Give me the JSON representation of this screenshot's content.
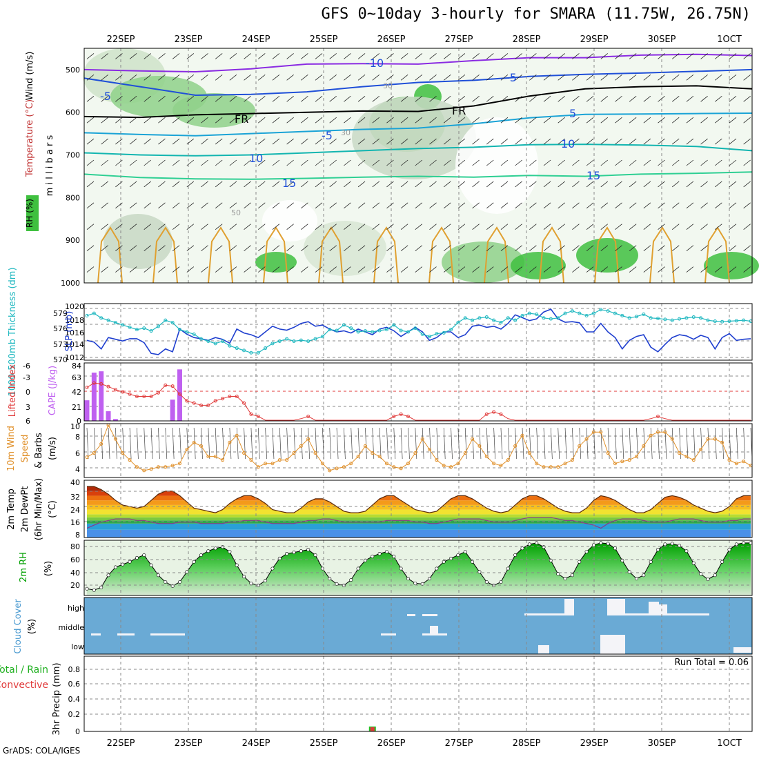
{
  "title": "GFS 0~10day 3-hourly for SMARA (11.75W, 26.75N)",
  "credit": "GrADS: COLA/IGES",
  "dates": [
    "22SEP",
    "23SEP",
    "24SEP",
    "25SEP",
    "26SEP",
    "27SEP",
    "28SEP",
    "29SEP",
    "30SEP",
    "1OCT"
  ],
  "chart_data": [
    {
      "type": "contour",
      "id": "upper-air",
      "ylabel": "m i l l i b a r s",
      "side_labels": [
        "Wind (m/s)",
        "Temperature (°C)",
        "RH (%)"
      ],
      "y_ticks": [
        "500",
        "600",
        "700",
        "800",
        "900",
        "1000"
      ],
      "ylim": [
        1000,
        450
      ],
      "contour_labels": [
        "-10",
        "-5",
        "-5",
        "FR",
        "FR",
        "-5",
        "5",
        "10",
        "10",
        "15",
        "15",
        "30",
        "30",
        "50"
      ],
      "isotherms": [
        {
          "label": "-10",
          "color": "#8a2be2",
          "p": [
            500,
            503,
            505,
            498,
            487,
            486,
            487,
            479,
            472,
            472,
            466,
            464,
            467
          ]
        },
        {
          "label": "-5",
          "color": "#1f4fd8",
          "p": [
            520,
            540,
            560,
            558,
            552,
            540,
            530,
            525,
            516,
            511,
            508,
            504,
            500
          ]
        },
        {
          "label": "FR",
          "color": "#000000",
          "p": [
            610,
            612,
            606,
            603,
            600,
            597,
            598,
            585,
            562,
            545,
            540,
            538,
            545
          ]
        },
        {
          "label": "5",
          "color": "#1aa3d6",
          "p": [
            648,
            652,
            655,
            650,
            645,
            640,
            637,
            627,
            613,
            605,
            604,
            603,
            602
          ]
        },
        {
          "label": "10",
          "color": "#12b5b0",
          "p": [
            695,
            700,
            702,
            700,
            695,
            690,
            685,
            682,
            676,
            675,
            677,
            680,
            690
          ]
        },
        {
          "label": "15",
          "color": "#2ecf93",
          "p": [
            745,
            753,
            756,
            757,
            755,
            752,
            750,
            752,
            748,
            750,
            745,
            743,
            740
          ]
        }
      ]
    },
    {
      "type": "line",
      "id": "slp-thickness",
      "ylabel_left": "1000-500mb Thickness (dm)",
      "ylabel_right": "SLP (mb)",
      "left_ticks": [
        "579",
        "576",
        "573",
        "570"
      ],
      "right_ticks": [
        "1020",
        "1018",
        "1016",
        "1014",
        "1012"
      ],
      "series": [
        {
          "name": "SLP (mb)",
          "color": "#1f3fcf",
          "ylim": [
            1011.5,
            1020.5
          ],
          "values": [
            1014.5,
            1014.2,
            1013.0,
            1015.0,
            1014.7,
            1014.4,
            1014.8,
            1014.8,
            1014.1,
            1012.2,
            1012.0,
            1013.0,
            1012.5,
            1016.5,
            1015.6,
            1015.0,
            1014.8,
            1014.5,
            1015.0,
            1014.7,
            1014.0,
            1016.5,
            1015.8,
            1015.5,
            1015.0,
            1016.0,
            1017.0,
            1016.5,
            1016.3,
            1016.8,
            1017.5,
            1017.8,
            1017.0,
            1017.2,
            1016.5,
            1016.0,
            1016.2,
            1015.8,
            1016.5,
            1016.0,
            1015.5,
            1016.5,
            1016.8,
            1016.2,
            1015.2,
            1016.0,
            1016.8,
            1016.0,
            1014.5,
            1015.0,
            1016.0,
            1016.0,
            1015.0,
            1015.5,
            1017.0,
            1017.2,
            1016.8,
            1017.0,
            1016.5,
            1017.5,
            1019.0,
            1018.5,
            1018.0,
            1018.3,
            1019.5,
            1020.0,
            1018.3,
            1017.7,
            1017.8,
            1017.6,
            1016.0,
            1016.0,
            1017.5,
            1016.0,
            1015.0,
            1013.0,
            1014.5,
            1015.2,
            1015.5,
            1013.3,
            1012.5,
            1013.8,
            1015.0,
            1015.5,
            1015.3,
            1014.7,
            1015.4,
            1015.0,
            1013.0,
            1015.0,
            1015.7,
            1014.5,
            1014.7,
            1014.8
          ]
        },
        {
          "name": "Thickness (dm)",
          "color": "#20b8c0",
          "ylim": [
            569.5,
            580.5
          ],
          "values": [
            578.5,
            579.0,
            578.0,
            577.5,
            577.0,
            576.5,
            576.0,
            575.5,
            575.8,
            575.2,
            576.2,
            577.5,
            577.0,
            575.5,
            575.0,
            574.5,
            573.5,
            573.0,
            572.5,
            573.0,
            572.0,
            571.5,
            571.0,
            570.5,
            570.5,
            571.5,
            572.5,
            573.0,
            573.5,
            573.0,
            573.2,
            573.0,
            573.5,
            574.0,
            575.5,
            575.3,
            576.5,
            575.8,
            575.0,
            575.2,
            575.0,
            575.3,
            575.5,
            576.5,
            575.3,
            575.0,
            575.8,
            574.5,
            574.0,
            574.6,
            574.8,
            575.5,
            577.0,
            578.0,
            577.5,
            578.0,
            578.2,
            577.5,
            577.0,
            578.0,
            577.5,
            578.5,
            579.0,
            578.8,
            578.0,
            577.8,
            578.0,
            579.0,
            579.5,
            579.0,
            578.5,
            579.0,
            579.8,
            579.5,
            579.0,
            578.5,
            578.0,
            578.3,
            578.8,
            578.0,
            577.9,
            577.7,
            577.5,
            577.8,
            578.0,
            578.2,
            578.0,
            577.5,
            577.3,
            577.2,
            577.3,
            577.4,
            577.5,
            577.3
          ]
        }
      ]
    },
    {
      "type": "bar+line",
      "id": "cape-li",
      "ylabel_left": "Lifted Index",
      "ylabel_right": "CAPE (J/kg)",
      "left_ticks": [
        "-6",
        "-3",
        "0",
        "3",
        "6"
      ],
      "right_ticks": [
        "84",
        "63",
        "42",
        "21",
        "0"
      ],
      "cape": {
        "color": "#bf60f0",
        "ylim": [
          0,
          90
        ],
        "values": [
          32,
          75,
          77,
          15,
          3,
          0,
          0,
          0,
          0,
          0,
          0,
          0,
          33,
          80,
          0,
          0,
          0,
          0,
          0,
          0,
          0,
          0,
          0,
          0,
          0,
          0,
          0,
          0,
          0,
          0,
          0,
          0,
          0,
          0,
          0,
          0,
          0,
          0,
          0,
          0,
          0,
          0,
          0,
          0,
          0,
          0,
          0,
          0,
          0,
          0,
          0,
          0,
          0,
          0,
          0,
          0,
          0,
          0,
          0,
          0,
          0,
          0,
          0,
          0,
          0,
          0,
          0,
          0,
          0,
          0,
          0,
          0,
          0,
          0,
          0,
          0,
          0,
          0,
          0,
          0,
          0,
          0,
          0,
          0,
          0,
          0,
          0,
          0,
          0,
          0,
          0,
          0,
          0,
          0
        ]
      },
      "li": {
        "color": "#e03a3a",
        "ylim": [
          -6.5,
          6.5
        ],
        "values": [
          -1.0,
          -2.0,
          -1.8,
          -1.2,
          -0.5,
          0,
          0.5,
          1,
          1,
          1,
          0.2,
          -1.5,
          -1.3,
          0.5,
          2.0,
          2.5,
          3.0,
          3.0,
          2.0,
          1.5,
          1.0,
          1.0,
          2.5,
          5.0,
          5.5,
          6.5,
          6.5,
          6.5,
          6.5,
          6.5,
          6.0,
          5.5,
          6.5,
          6.5,
          6.5,
          6.5,
          6.5,
          6.5,
          6.5,
          6.5,
          6.5,
          6.5,
          6.5,
          5.5,
          5.0,
          5.5,
          6.5,
          6.5,
          6.5,
          6.5,
          6.5,
          6.5,
          6.5,
          6.5,
          6.5,
          6.5,
          5.0,
          4.5,
          5.0,
          6.0,
          6.5,
          6.5,
          6.5,
          6.5,
          6.5,
          6.5,
          6.5,
          6.5,
          6.5,
          6.5,
          6.5,
          6.5,
          6.5,
          6.5,
          6.5,
          6.5,
          6.5,
          6.5,
          6.5,
          6.0,
          5.5,
          6.0,
          6.5,
          6.5,
          6.5,
          6.5,
          6.5,
          6.5,
          6.5,
          6.5,
          6.5,
          6.5,
          6.5,
          6.5
        ]
      }
    },
    {
      "type": "line",
      "id": "wind10m",
      "ylabel": "10m Wind Speed & Barbs (m/s)",
      "y_ticks": [
        "10",
        "8",
        "6",
        "4"
      ],
      "ylim": [
        2.5,
        10.2
      ],
      "color": "#e0902a",
      "values": [
        5.4,
        6.0,
        7.3,
        10.0,
        8.0,
        6.0,
        5.0,
        4.0,
        3.5,
        3.7,
        4.0,
        4.0,
        4.2,
        4.5,
        6.5,
        7.5,
        7.0,
        5.5,
        5.5,
        5.0,
        7.5,
        8.5,
        6.0,
        5.0,
        4.0,
        4.5,
        4.5,
        5.0,
        5.0,
        6.0,
        7.0,
        8.0,
        6.0,
        4.5,
        3.5,
        3.8,
        4.0,
        4.5,
        5.5,
        7.0,
        6.0,
        5.5,
        4.5,
        4.0,
        3.8,
        4.5,
        6.0,
        8.0,
        6.5,
        5.0,
        4.2,
        4.0,
        4.5,
        6.0,
        8.0,
        7.0,
        5.5,
        4.5,
        4.2,
        5.0,
        7.0,
        8.5,
        6.0,
        4.5,
        4.0,
        4.0,
        4.0,
        4.5,
        5.0,
        7.0,
        8.0,
        9.0,
        9.0,
        6.0,
        4.5,
        4.8,
        5.0,
        5.5,
        7.0,
        8.5,
        9.0,
        9.0,
        8.0,
        6.0,
        5.5,
        5.0,
        6.5,
        8.0,
        8.0,
        7.5,
        5.0,
        4.5,
        4.8,
        4.2
      ]
    },
    {
      "type": "area",
      "id": "temp-dewpt",
      "ylabel": "2m Temp 2m DewPt (6hr Min/Max) (°C)",
      "y_ticks": [
        "40",
        "32",
        "24",
        "16",
        "8"
      ],
      "ylim": [
        3,
        40
      ],
      "temp": [
        36,
        36,
        34,
        31,
        27,
        24,
        23,
        22,
        23,
        27,
        31,
        33,
        33,
        30,
        26,
        22,
        21,
        20,
        19,
        21,
        25,
        28,
        30,
        30,
        28,
        25,
        21,
        20,
        19,
        19,
        22,
        26,
        28,
        28,
        26,
        23,
        20,
        19,
        19,
        20,
        24,
        28,
        30,
        30,
        27,
        24,
        21,
        20,
        19,
        20,
        24,
        28,
        30,
        30,
        28,
        25,
        22,
        20,
        19,
        20,
        24,
        28,
        30,
        30,
        28,
        25,
        22,
        20,
        19,
        19,
        22,
        27,
        30,
        29,
        27,
        24,
        21,
        19,
        19,
        21,
        25,
        29,
        30,
        29,
        27,
        24,
        22,
        20,
        19,
        20,
        23,
        28,
        30,
        30
      ],
      "dewpt": [
        9,
        11,
        13,
        14,
        15,
        15,
        15,
        14,
        14,
        13,
        12,
        12,
        12,
        13,
        13,
        13,
        12,
        12,
        12,
        12,
        13,
        13,
        14,
        14,
        14,
        13,
        12,
        12,
        12,
        12,
        13,
        14,
        14,
        15,
        15,
        14,
        13,
        13,
        13,
        13,
        13,
        13,
        14,
        14,
        14,
        14,
        13,
        13,
        12,
        12,
        13,
        14,
        15,
        15,
        15,
        15,
        14,
        13,
        13,
        13,
        14,
        15,
        16,
        16,
        16,
        16,
        15,
        14,
        14,
        13,
        12,
        11,
        9,
        12,
        14,
        15,
        15,
        15,
        14,
        13,
        13,
        13,
        14,
        15,
        15,
        15,
        14,
        13,
        13,
        13,
        14,
        14,
        15,
        15
      ]
    },
    {
      "type": "area",
      "id": "rh2m",
      "ylabel": "2m RH (%)",
      "y_ticks": [
        "80",
        "60",
        "40",
        "20"
      ],
      "ylim": [
        10,
        92
      ],
      "values": [
        20,
        18,
        22,
        40,
        52,
        56,
        60,
        66,
        70,
        55,
        40,
        30,
        24,
        30,
        45,
        60,
        70,
        76,
        80,
        82,
        75,
        55,
        38,
        28,
        25,
        32,
        50,
        65,
        72,
        74,
        76,
        78,
        70,
        50,
        35,
        27,
        25,
        33,
        50,
        62,
        68,
        72,
        75,
        68,
        50,
        35,
        28,
        27,
        35,
        50,
        60,
        65,
        70,
        75,
        60,
        45,
        30,
        25,
        30,
        50,
        70,
        80,
        86,
        88,
        82,
        62,
        42,
        35,
        40,
        60,
        75,
        85,
        88,
        87,
        80,
        62,
        45,
        35,
        40,
        60,
        78,
        86,
        87,
        84,
        76,
        58,
        42,
        34,
        40,
        60,
        78,
        86,
        88,
        88
      ]
    },
    {
      "type": "cloud",
      "id": "cloud-cover",
      "ylabel": "Cloud Cover (%)",
      "y_ticks": [
        "high",
        "middle",
        "low"
      ],
      "bg_color": "#6aaad5"
    },
    {
      "type": "bar",
      "id": "precip",
      "ylabel": "3hr Precip (mm)",
      "series_labels": [
        "Total / Rain",
        "Convective"
      ],
      "y_ticks": [
        "0.8",
        "0.6",
        "0.4",
        "0.2",
        "0"
      ],
      "ylim": [
        0,
        1
      ],
      "run_total": "Run Total = 0.06",
      "values_index": [
        40
      ],
      "values": [
        0.06
      ]
    }
  ]
}
